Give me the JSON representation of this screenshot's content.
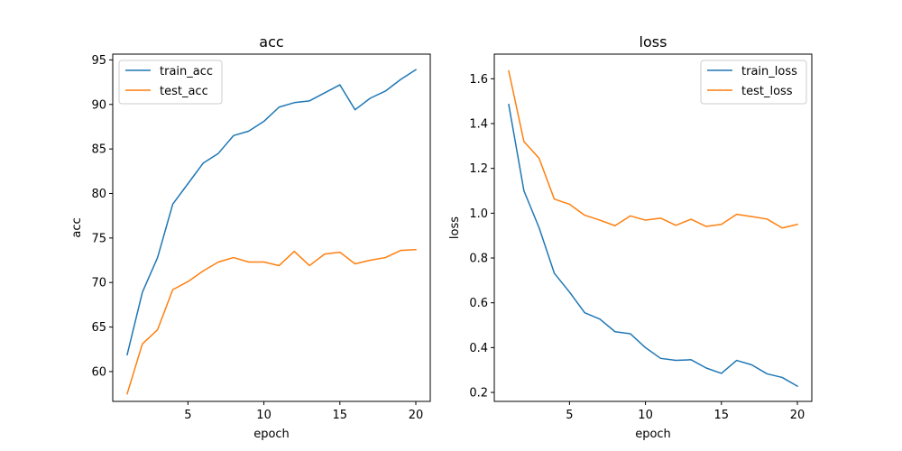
{
  "chart_data": [
    {
      "type": "line",
      "title": "acc",
      "xlabel": "epoch",
      "ylabel": "acc",
      "xlim": [
        0.05,
        20.95
      ],
      "ylim": [
        56.65,
        95.65
      ],
      "xticks": [
        5,
        10,
        15,
        20
      ],
      "yticks": [
        60,
        65,
        70,
        75,
        80,
        85,
        90,
        95
      ],
      "legend": "upper left",
      "grid": false,
      "x": [
        1,
        2,
        3,
        4,
        5,
        6,
        7,
        8,
        9,
        10,
        11,
        12,
        13,
        14,
        15,
        16,
        17,
        18,
        19,
        20
      ],
      "series": [
        {
          "name": "train_acc",
          "color": "#1f77b4",
          "values": [
            61.9,
            68.9,
            72.8,
            78.8,
            81.1,
            83.4,
            84.5,
            86.5,
            87.0,
            88.1,
            89.7,
            90.2,
            90.4,
            91.3,
            92.2,
            89.4,
            90.7,
            91.5,
            92.8,
            93.9
          ]
        },
        {
          "name": "test_acc",
          "color": "#ff7f0e",
          "values": [
            57.5,
            63.1,
            64.7,
            69.2,
            70.1,
            71.3,
            72.3,
            72.8,
            72.3,
            72.3,
            71.9,
            73.5,
            71.9,
            73.2,
            73.4,
            72.1,
            72.5,
            72.8,
            73.6,
            73.7
          ]
        }
      ]
    },
    {
      "type": "line",
      "title": "loss",
      "xlabel": "epoch",
      "ylabel": "loss",
      "xlim": [
        0.05,
        20.95
      ],
      "ylim": [
        0.16,
        1.71
      ],
      "xticks": [
        5,
        10,
        15,
        20
      ],
      "yticks": [
        0.2,
        0.4,
        0.6,
        0.8,
        1.0,
        1.2,
        1.4,
        1.6
      ],
      "ytick_labels": [
        "0.2",
        "0.4",
        "0.6",
        "0.8",
        "1.0",
        "1.2",
        "1.4",
        "1.6"
      ],
      "legend": "upper right",
      "grid": false,
      "x": [
        1,
        2,
        3,
        4,
        5,
        6,
        7,
        8,
        9,
        10,
        11,
        12,
        13,
        14,
        15,
        16,
        17,
        18,
        19,
        20
      ],
      "series": [
        {
          "name": "train_loss",
          "color": "#1f77b4",
          "values": [
            1.485,
            1.1,
            0.935,
            0.732,
            0.648,
            0.556,
            0.527,
            0.471,
            0.462,
            0.4,
            0.352,
            0.343,
            0.346,
            0.309,
            0.285,
            0.343,
            0.323,
            0.283,
            0.267,
            0.228
          ]
        },
        {
          "name": "test_loss",
          "color": "#ff7f0e",
          "values": [
            1.635,
            1.32,
            1.245,
            1.063,
            1.04,
            0.991,
            0.969,
            0.944,
            0.988,
            0.969,
            0.978,
            0.946,
            0.973,
            0.941,
            0.95,
            0.995,
            0.985,
            0.974,
            0.934,
            0.95
          ]
        }
      ]
    }
  ]
}
